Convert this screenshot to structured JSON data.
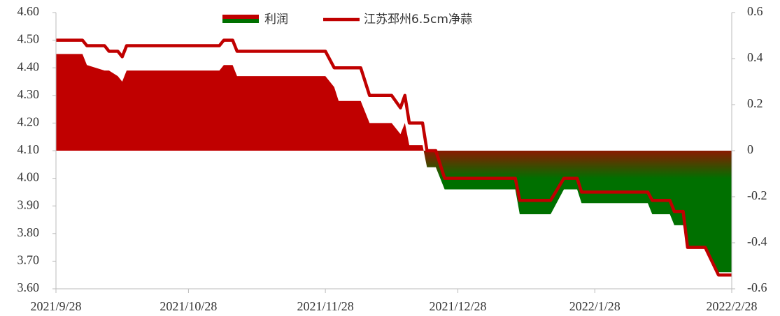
{
  "chart_data": {
    "type": "area_line",
    "x": [
      "2021/9/28",
      "2021/10/4",
      "2021/10/5",
      "2021/10/9",
      "2021/10/10",
      "2021/10/12",
      "2021/10/13",
      "2021/10/14",
      "2021/11/4",
      "2021/11/5",
      "2021/11/7",
      "2021/11/8",
      "2021/11/28",
      "2021/11/30",
      "2021/12/1",
      "2021/12/6",
      "2021/12/8",
      "2021/12/13",
      "2021/12/15",
      "2021/12/16",
      "2021/12/17",
      "2021/12/20",
      "2021/12/21",
      "2021/12/23",
      "2021/12/25",
      "2022/1/10",
      "2022/1/11",
      "2022/1/18",
      "2022/1/21",
      "2022/1/24",
      "2022/1/25",
      "2022/2/9",
      "2022/2/10",
      "2022/2/14",
      "2022/2/15",
      "2022/2/17",
      "2022/2/18",
      "2022/2/22",
      "2022/2/25",
      "2022/2/28"
    ],
    "series": [
      {
        "name": "利润",
        "kind": "area",
        "axis": "y2",
        "color": "#c00000",
        "negative_color": "#007000",
        "values": [
          0.42,
          0.42,
          0.372,
          0.348,
          0.348,
          0.324,
          0.3,
          0.348,
          0.348,
          0.372,
          0.372,
          0.324,
          0.324,
          0.276,
          0.216,
          0.216,
          0.12,
          0.12,
          0.072,
          0.12,
          0.024,
          0.024,
          -0.072,
          -0.072,
          -0.168,
          -0.168,
          -0.276,
          -0.276,
          -0.168,
          -0.168,
          -0.228,
          -0.228,
          -0.276,
          -0.276,
          -0.324,
          -0.324,
          -0.42,
          -0.42,
          -0.528,
          -0.528
        ]
      },
      {
        "name": "江苏邳州6.5cm净蒜",
        "kind": "line",
        "axis": "y",
        "color": "#c00000",
        "values": [
          4.5,
          4.5,
          4.48,
          4.48,
          4.46,
          4.46,
          4.44,
          4.48,
          4.48,
          4.5,
          4.5,
          4.46,
          4.46,
          4.4,
          4.4,
          4.4,
          4.3,
          4.3,
          4.255,
          4.3,
          4.2,
          4.2,
          4.1,
          4.1,
          4.0,
          4.0,
          3.92,
          3.92,
          4.0,
          4.0,
          3.95,
          3.95,
          3.92,
          3.92,
          3.88,
          3.88,
          3.75,
          3.75,
          3.65,
          3.65
        ]
      }
    ],
    "xlim": [
      "2021/9/28",
      "2022/2/28"
    ],
    "xticks": [
      "2021/9/28",
      "2021/10/28",
      "2021/11/28",
      "2021/12/28",
      "2022/1/28",
      "2022/2/28"
    ],
    "ylim": [
      3.6,
      4.6
    ],
    "yticks": [
      {
        "value": 3.6,
        "label": "3.60"
      },
      {
        "value": 3.7,
        "label": "3.70"
      },
      {
        "value": 3.8,
        "label": "3.80"
      },
      {
        "value": 3.9,
        "label": "3.90"
      },
      {
        "value": 4.0,
        "label": "4.00"
      },
      {
        "value": 4.1,
        "label": "4.10"
      },
      {
        "value": 4.2,
        "label": "4.20"
      },
      {
        "value": 4.3,
        "label": "4.30"
      },
      {
        "value": 4.4,
        "label": "4.40"
      },
      {
        "value": 4.5,
        "label": "4.50"
      },
      {
        "value": 4.6,
        "label": "4.60"
      }
    ],
    "y2lim": [
      -0.6,
      0.6
    ],
    "y2ticks": [
      -0.6,
      -0.4,
      -0.2,
      0,
      0.2,
      0.4,
      0.6
    ],
    "legend": "top"
  }
}
